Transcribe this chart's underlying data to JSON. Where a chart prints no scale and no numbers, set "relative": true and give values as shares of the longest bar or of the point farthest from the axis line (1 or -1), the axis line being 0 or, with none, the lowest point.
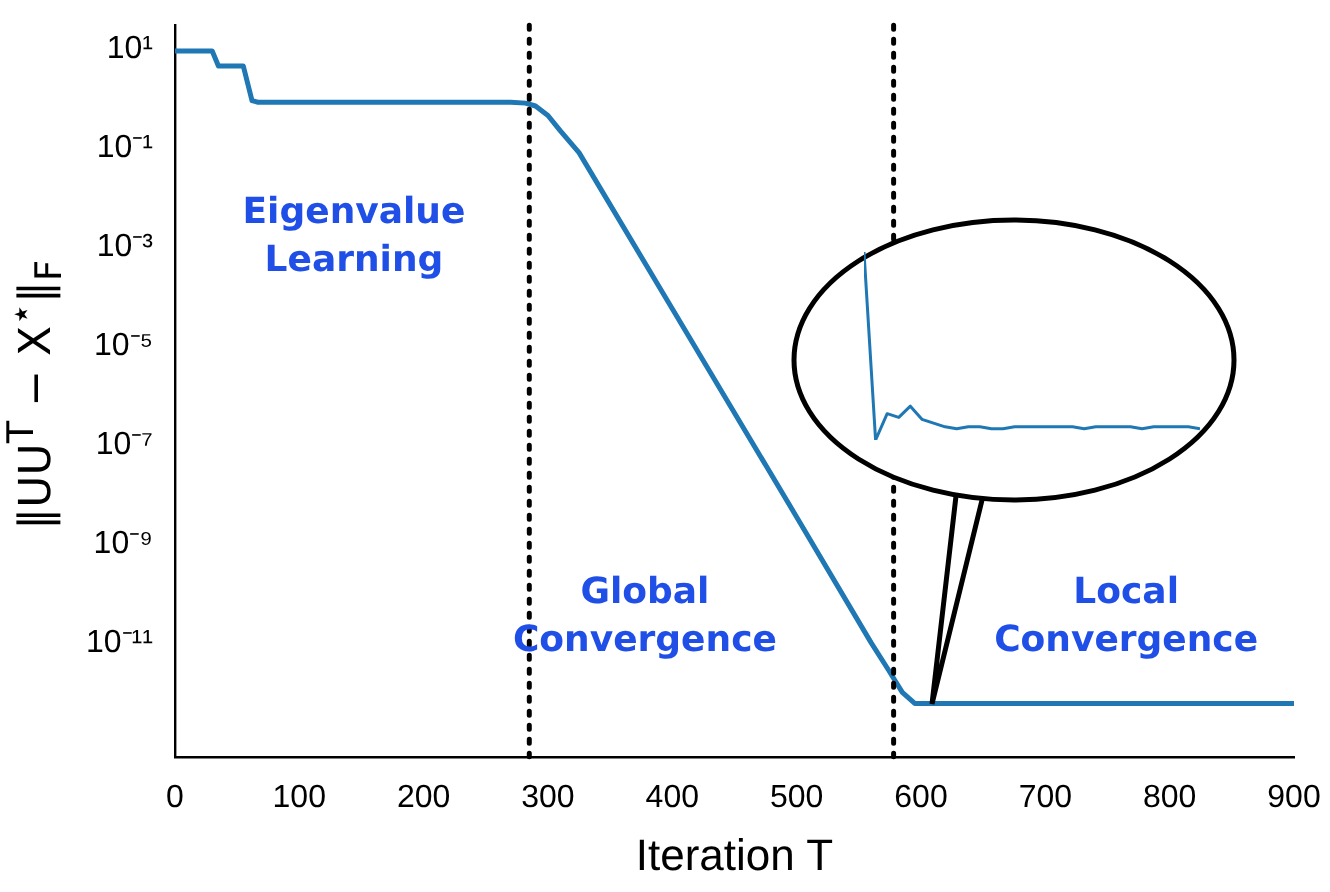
{
  "chart_data": [
    {
      "type": "line",
      "xlabel": "Iteration T",
      "ylabel": "‖UU$^{T}$ − X$^{⋆}$‖$_{F}$",
      "x": [
        0,
        30,
        35,
        55,
        62,
        67,
        100,
        200,
        270,
        282,
        290,
        300,
        310,
        325,
        400,
        500,
        560,
        574,
        585,
        595,
        600,
        700,
        800,
        900
      ],
      "series": [
        {
          "color": "#1f77b4",
          "values": [
            9,
            9,
            4.5,
            4.5,
            0.9,
            0.83,
            0.83,
            0.83,
            0.83,
            0.8,
            0.7,
            0.45,
            0.22,
            0.08,
            5.6e-05,
            3.5e-09,
            1e-11,
            2.8e-12,
            1e-12,
            6e-13,
            6e-13,
            6e-13,
            6e-13,
            6e-13
          ]
        }
      ],
      "log": "y",
      "xlim": [
        0,
        900
      ],
      "ylim": [
        5e-14,
        30
      ],
      "xticks": [
        0,
        100,
        200,
        300,
        400,
        500,
        600,
        700,
        800,
        900
      ],
      "yticks": [
        {
          "value": 10,
          "label": "10¹"
        },
        {
          "value": 0.1,
          "label": "10⁻¹"
        },
        {
          "value": 0.001,
          "label": "10⁻³"
        },
        {
          "value": 1e-05,
          "label": "10⁻⁵"
        },
        {
          "value": 1e-07,
          "label": "10⁻⁷"
        },
        {
          "value": 1e-09,
          "label": "10⁻⁹"
        },
        {
          "value": 1e-11,
          "label": "10⁻¹¹"
        }
      ],
      "ref_lines": [
        {
          "axis": "x",
          "value": 285,
          "color": "#000000",
          "line_style": "dotted"
        },
        {
          "axis": "x",
          "value": 578,
          "color": "#000000",
          "line_style": "dotted"
        }
      ],
      "annotations": [
        "Eigenvalue Learning",
        "Global Convergence",
        "Local Convergence"
      ],
      "grid": false,
      "legend": false,
      "marker": "none",
      "line_style": "solid"
    },
    {
      "type": "line",
      "relative": true,
      "categories": [
        null,
        null,
        null,
        null,
        null,
        null,
        null,
        null,
        null,
        null,
        null,
        null,
        null,
        null,
        null,
        null,
        null,
        null,
        null,
        null,
        null,
        null,
        null,
        null,
        null,
        null,
        null,
        null,
        null,
        null
      ],
      "series": [
        {
          "color": "#1f77b4",
          "values": [
            1,
            0,
            0.14,
            0.12,
            0.18,
            0.11,
            0.09,
            0.07,
            0.06,
            0.07,
            0.07,
            0.06,
            0.06,
            0.07,
            0.07,
            0.07,
            0.07,
            0.07,
            0.07,
            0.06,
            0.07,
            0.07,
            0.07,
            0.07,
            0.06,
            0.07,
            0.07,
            0.07,
            0.07,
            0.06
          ]
        }
      ],
      "legend": false,
      "marker": "none",
      "line_style": "solid"
    }
  ]
}
